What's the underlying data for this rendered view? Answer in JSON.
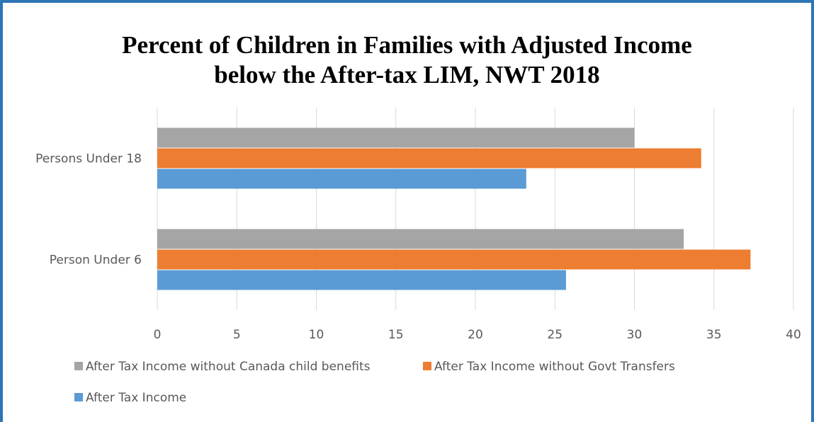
{
  "chart_data": {
    "type": "bar",
    "orientation": "horizontal",
    "title_lines": [
      "Percent of Children in Families with Adjusted Income",
      "below the After-tax LIM, NWT 2018"
    ],
    "categories": [
      "Persons Under 18",
      "Person Under 6"
    ],
    "series": [
      {
        "name": "After Tax Income without Canada child benefits",
        "color": "#a5a5a5",
        "values": [
          30,
          33.1
        ]
      },
      {
        "name": "After Tax Income without Govt Transfers",
        "color": "#ed7d31",
        "values": [
          34.2,
          37.3
        ]
      },
      {
        "name": "After Tax Income",
        "color": "#5b9bd5",
        "values": [
          23.2,
          25.7
        ]
      }
    ],
    "xlim": [
      0,
      40
    ],
    "xticks": [
      "0",
      "5",
      "10",
      "15",
      "20",
      "25",
      "30",
      "35",
      "40"
    ],
    "xlabel": "",
    "ylabel": "",
    "grid": "vertical",
    "legend_position": "bottom"
  },
  "colors": {
    "frame_border": "#2e75b6",
    "gridline": "#d9d9d9",
    "axis_text": "#595959"
  }
}
